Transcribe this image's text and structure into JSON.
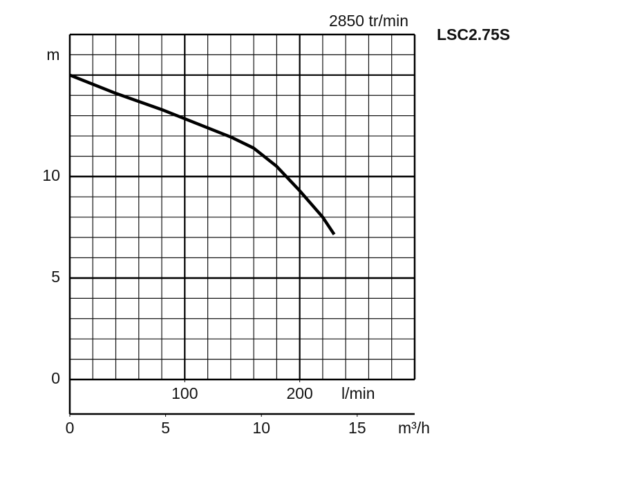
{
  "chart_data": {
    "type": "line",
    "title": "2850 tr/min",
    "model": "LSC2.75S",
    "y_label": "m",
    "x_label": "l/min",
    "x2_label": "m³/h",
    "x": [
      0,
      40,
      80,
      100,
      120,
      140,
      160,
      180,
      200,
      220,
      230
    ],
    "series": [
      {
        "name": "LSC2.75S",
        "color": "#000000",
        "values": [
          15,
          14.1,
          13.3,
          12.85,
          12.4,
          11.95,
          11.4,
          10.5,
          9.3,
          8.0,
          7.15
        ]
      }
    ],
    "xlim": [
      0,
      300
    ],
    "xticks": [
      100,
      200
    ],
    "x2lim": [
      0,
      18
    ],
    "x2ticks": [
      0,
      5,
      10,
      15
    ],
    "ylim": [
      0,
      17
    ],
    "yticks": [
      0,
      5,
      10
    ],
    "x_major_grid": [
      100,
      200
    ],
    "x_minor_grid": [
      20,
      40,
      60,
      80,
      120,
      140,
      160,
      180,
      220,
      240,
      260,
      280
    ],
    "y_major_grid": [
      5,
      10,
      15
    ],
    "y_minor_grid": [
      1,
      2,
      3,
      4,
      6,
      7,
      8,
      9,
      11,
      12,
      13,
      14,
      16
    ],
    "grid": true
  }
}
